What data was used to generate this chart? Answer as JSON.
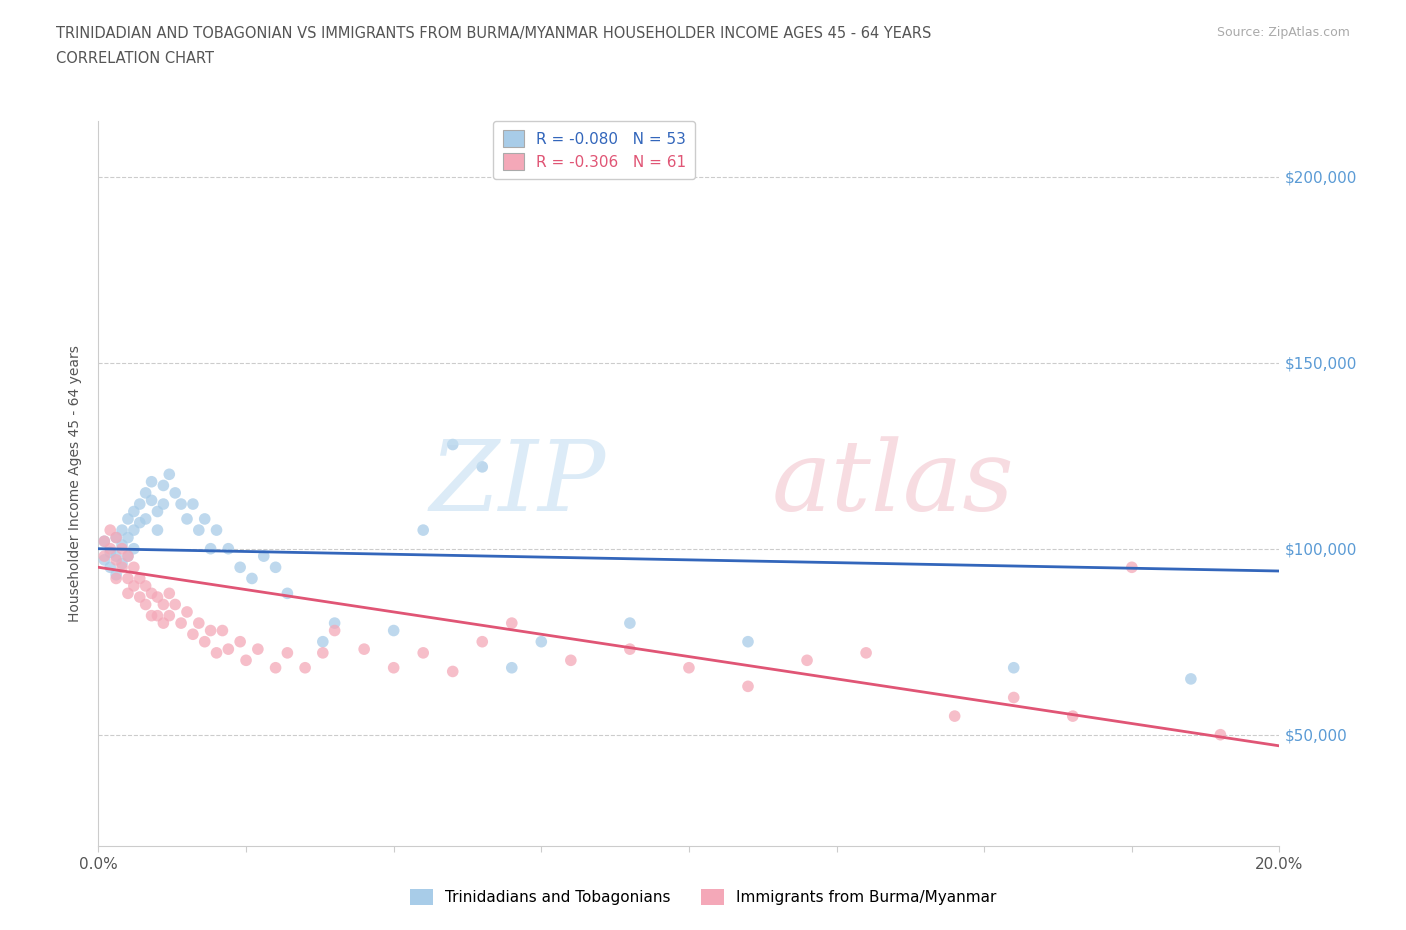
{
  "title_line1": "TRINIDADIAN AND TOBAGONIAN VS IMMIGRANTS FROM BURMA/MYANMAR HOUSEHOLDER INCOME AGES 45 - 64 YEARS",
  "title_line2": "CORRELATION CHART",
  "source_text": "Source: ZipAtlas.com",
  "ylabel": "Householder Income Ages 45 - 64 years",
  "xlim": [
    0.0,
    0.2
  ],
  "ylim": [
    20000,
    215000
  ],
  "blue_R": "-0.080",
  "blue_N": "53",
  "pink_R": "-0.306",
  "pink_N": "61",
  "blue_color": "#a8cce8",
  "pink_color": "#f4a8b8",
  "blue_line_color": "#3366bb",
  "pink_line_color": "#e05575",
  "ytick_color": "#5b9bd5",
  "title_color": "#555555",
  "source_color": "#aaaaaa",
  "blue_intercept": 100000,
  "blue_slope": -30000,
  "pink_intercept": 95000,
  "pink_slope": -240000,
  "blue_scatter": [
    [
      0.001,
      97000
    ],
    [
      0.001,
      102000
    ],
    [
      0.002,
      99000
    ],
    [
      0.002,
      95000
    ],
    [
      0.003,
      103000
    ],
    [
      0.003,
      98000
    ],
    [
      0.003,
      93000
    ],
    [
      0.004,
      105000
    ],
    [
      0.004,
      101000
    ],
    [
      0.004,
      96000
    ],
    [
      0.005,
      108000
    ],
    [
      0.005,
      103000
    ],
    [
      0.005,
      98000
    ],
    [
      0.006,
      110000
    ],
    [
      0.006,
      105000
    ],
    [
      0.006,
      100000
    ],
    [
      0.007,
      112000
    ],
    [
      0.007,
      107000
    ],
    [
      0.008,
      115000
    ],
    [
      0.008,
      108000
    ],
    [
      0.009,
      118000
    ],
    [
      0.009,
      113000
    ],
    [
      0.01,
      110000
    ],
    [
      0.01,
      105000
    ],
    [
      0.011,
      117000
    ],
    [
      0.011,
      112000
    ],
    [
      0.012,
      120000
    ],
    [
      0.013,
      115000
    ],
    [
      0.014,
      112000
    ],
    [
      0.015,
      108000
    ],
    [
      0.016,
      112000
    ],
    [
      0.017,
      105000
    ],
    [
      0.018,
      108000
    ],
    [
      0.019,
      100000
    ],
    [
      0.02,
      105000
    ],
    [
      0.022,
      100000
    ],
    [
      0.024,
      95000
    ],
    [
      0.026,
      92000
    ],
    [
      0.028,
      98000
    ],
    [
      0.03,
      95000
    ],
    [
      0.032,
      88000
    ],
    [
      0.038,
      75000
    ],
    [
      0.04,
      80000
    ],
    [
      0.05,
      78000
    ],
    [
      0.055,
      105000
    ],
    [
      0.06,
      128000
    ],
    [
      0.065,
      122000
    ],
    [
      0.07,
      68000
    ],
    [
      0.075,
      75000
    ],
    [
      0.09,
      80000
    ],
    [
      0.11,
      75000
    ],
    [
      0.155,
      68000
    ],
    [
      0.185,
      65000
    ]
  ],
  "pink_scatter": [
    [
      0.001,
      102000
    ],
    [
      0.001,
      98000
    ],
    [
      0.002,
      105000
    ],
    [
      0.002,
      100000
    ],
    [
      0.003,
      103000
    ],
    [
      0.003,
      97000
    ],
    [
      0.003,
      92000
    ],
    [
      0.004,
      100000
    ],
    [
      0.004,
      95000
    ],
    [
      0.005,
      98000
    ],
    [
      0.005,
      92000
    ],
    [
      0.005,
      88000
    ],
    [
      0.006,
      95000
    ],
    [
      0.006,
      90000
    ],
    [
      0.007,
      92000
    ],
    [
      0.007,
      87000
    ],
    [
      0.008,
      90000
    ],
    [
      0.008,
      85000
    ],
    [
      0.009,
      88000
    ],
    [
      0.009,
      82000
    ],
    [
      0.01,
      87000
    ],
    [
      0.01,
      82000
    ],
    [
      0.011,
      85000
    ],
    [
      0.011,
      80000
    ],
    [
      0.012,
      88000
    ],
    [
      0.012,
      82000
    ],
    [
      0.013,
      85000
    ],
    [
      0.014,
      80000
    ],
    [
      0.015,
      83000
    ],
    [
      0.016,
      77000
    ],
    [
      0.017,
      80000
    ],
    [
      0.018,
      75000
    ],
    [
      0.019,
      78000
    ],
    [
      0.02,
      72000
    ],
    [
      0.021,
      78000
    ],
    [
      0.022,
      73000
    ],
    [
      0.024,
      75000
    ],
    [
      0.025,
      70000
    ],
    [
      0.027,
      73000
    ],
    [
      0.03,
      68000
    ],
    [
      0.032,
      72000
    ],
    [
      0.035,
      68000
    ],
    [
      0.038,
      72000
    ],
    [
      0.04,
      78000
    ],
    [
      0.045,
      73000
    ],
    [
      0.05,
      68000
    ],
    [
      0.055,
      72000
    ],
    [
      0.06,
      67000
    ],
    [
      0.065,
      75000
    ],
    [
      0.07,
      80000
    ],
    [
      0.08,
      70000
    ],
    [
      0.09,
      73000
    ],
    [
      0.1,
      68000
    ],
    [
      0.11,
      63000
    ],
    [
      0.12,
      70000
    ],
    [
      0.13,
      72000
    ],
    [
      0.145,
      55000
    ],
    [
      0.155,
      60000
    ],
    [
      0.165,
      55000
    ],
    [
      0.175,
      95000
    ],
    [
      0.19,
      50000
    ]
  ]
}
